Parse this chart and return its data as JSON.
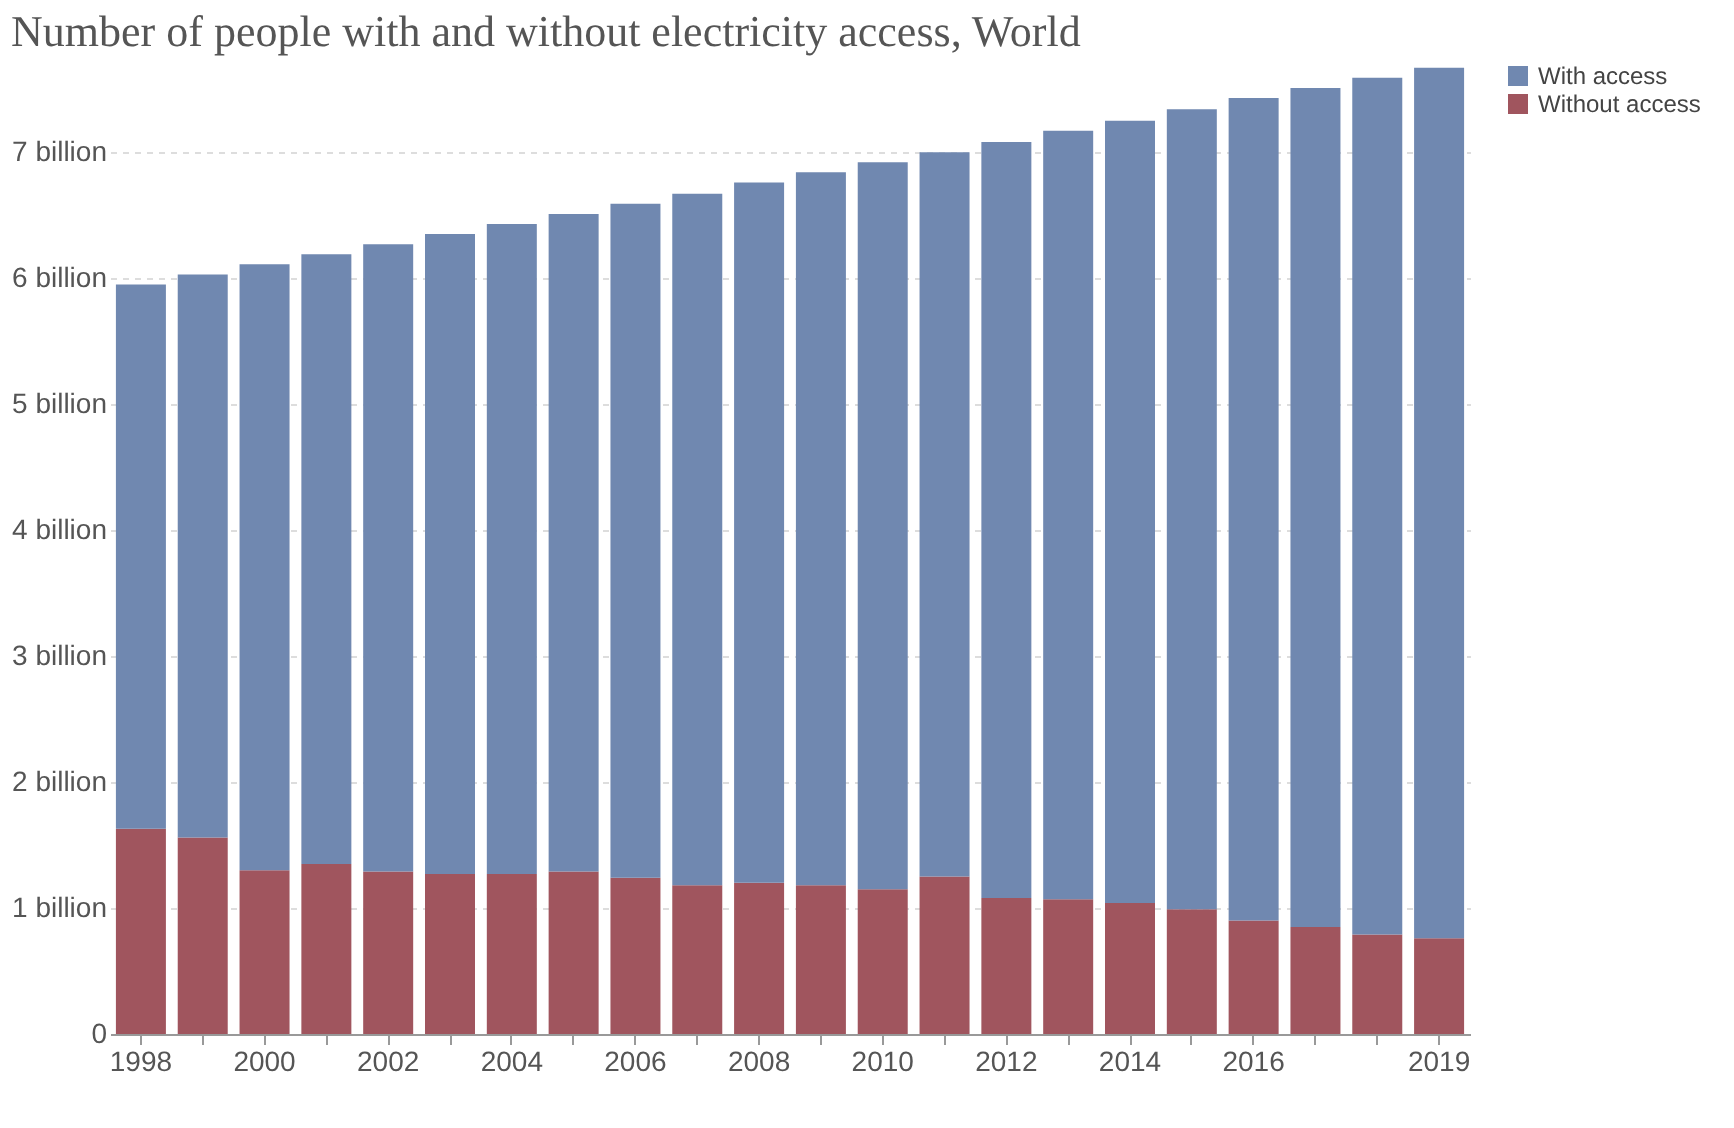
{
  "chart_data": {
    "type": "bar",
    "title": "Number of people with and without electricity access, World",
    "categories": [
      "1998",
      null,
      "2000",
      null,
      "2002",
      null,
      "2004",
      null,
      "2006",
      null,
      "2008",
      null,
      "2010",
      null,
      "2012",
      null,
      "2014",
      null,
      "2016",
      null,
      null,
      "2019"
    ],
    "stacked": true,
    "series": [
      {
        "name": "Without access",
        "color": "#a0555e",
        "values": [
          1.63,
          1.56,
          1.3,
          1.35,
          1.29,
          1.27,
          1.27,
          1.29,
          1.24,
          1.18,
          1.2,
          1.18,
          1.15,
          1.25,
          1.08,
          1.07,
          1.04,
          0.99,
          0.9,
          0.85,
          0.79,
          0.76
        ]
      },
      {
        "name": "With access",
        "color": "#7088b0",
        "values": [
          4.32,
          4.47,
          4.81,
          4.84,
          4.98,
          5.08,
          5.16,
          5.22,
          5.35,
          5.49,
          5.56,
          5.66,
          5.77,
          5.75,
          6.0,
          6.1,
          6.21,
          6.35,
          6.53,
          6.66,
          6.8,
          6.91
        ]
      }
    ],
    "ylim": [
      0,
      7.7
    ],
    "yticks": [
      0,
      {
        "value": 1,
        "label": "1 billion"
      },
      {
        "value": 2,
        "label": "2 billion"
      },
      {
        "value": 3,
        "label": "3 billion"
      },
      {
        "value": 4,
        "label": "4 billion"
      },
      {
        "value": 5,
        "label": "5 billion"
      },
      {
        "value": 6,
        "label": "6 billion"
      },
      {
        "value": 7,
        "label": "7 billion"
      }
    ],
    "grid": "y",
    "legend": "top right"
  }
}
